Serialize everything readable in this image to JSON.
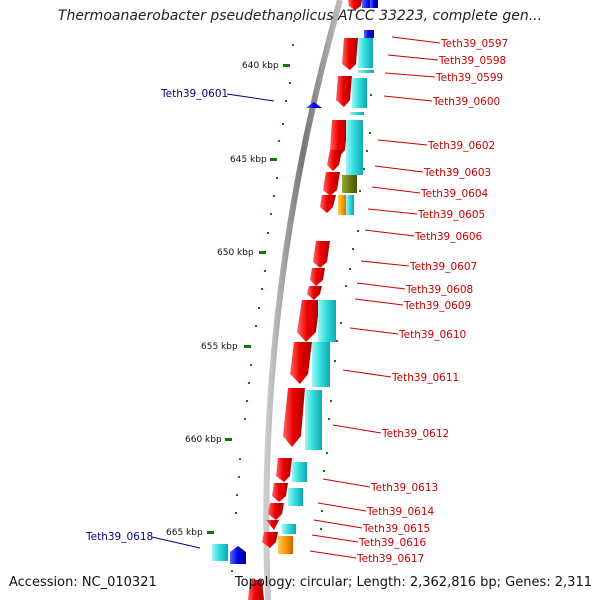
{
  "title": "Thermoanaerobacter pseudethanolicus ATCC 33223, complete gen...",
  "footer": {
    "accession": "Accession: NC_010321",
    "summary": "Topology: circular; Length: 2,362,816 bp; Genes: 2,311"
  },
  "colors": {
    "backbone": "#888888",
    "feature_red": "#ee0000",
    "feature_cyan": "#33dddd",
    "feature_blue": "#0000dd",
    "feature_orange": "#ff9900",
    "feature_olive": "#6b7a16",
    "tick_green": "#117711",
    "label_red": "#cc0000",
    "label_blue": "#00008b"
  },
  "ticks": [
    {
      "label": "640 kbp"
    },
    {
      "label": "645 kbp"
    },
    {
      "label": "650 kbp"
    },
    {
      "label": "655 kbp"
    },
    {
      "label": "660 kbp"
    },
    {
      "label": "665 kbp"
    }
  ],
  "genes": [
    {
      "name": "Teth39_0597"
    },
    {
      "name": "Teth39_0598"
    },
    {
      "name": "Teth39_0599"
    },
    {
      "name": "Teth39_0600"
    },
    {
      "name": "Teth39_0601"
    },
    {
      "name": "Teth39_0602"
    },
    {
      "name": "Teth39_0603"
    },
    {
      "name": "Teth39_0604"
    },
    {
      "name": "Teth39_0605"
    },
    {
      "name": "Teth39_0606"
    },
    {
      "name": "Teth39_0607"
    },
    {
      "name": "Teth39_0608"
    },
    {
      "name": "Teth39_0609"
    },
    {
      "name": "Teth39_0610"
    },
    {
      "name": "Teth39_0611"
    },
    {
      "name": "Teth39_0612"
    },
    {
      "name": "Teth39_0613"
    },
    {
      "name": "Teth39_0614"
    },
    {
      "name": "Teth39_0615"
    },
    {
      "name": "Teth39_0616"
    },
    {
      "name": "Teth39_0617"
    },
    {
      "name": "Teth39_0618"
    }
  ]
}
